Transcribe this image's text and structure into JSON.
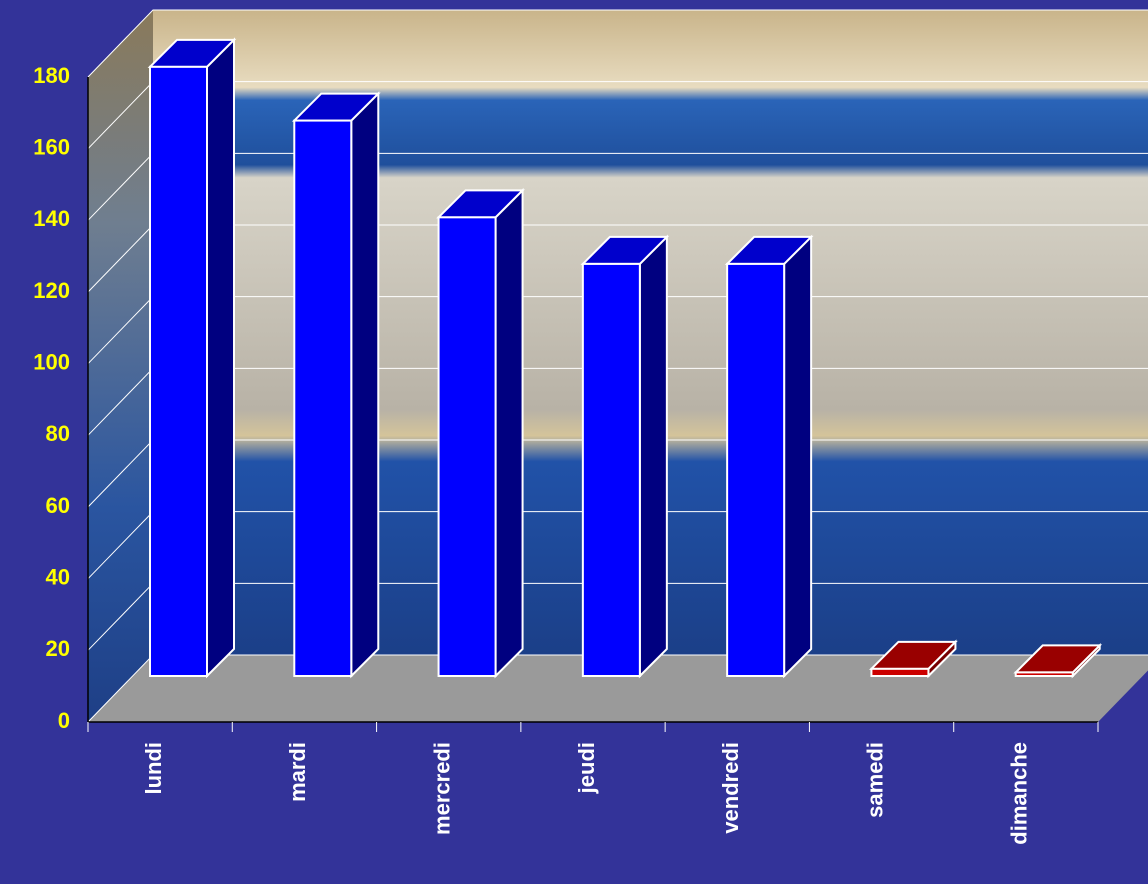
{
  "chart_data": {
    "type": "bar3d",
    "categories": [
      "lundi",
      "mardi",
      "mercredi",
      "jeudi",
      "vendredi",
      "samedi",
      "dimanche"
    ],
    "values": [
      170,
      155,
      128,
      115,
      115,
      2,
      1
    ],
    "colors": [
      "#0000ff",
      "#0000ff",
      "#0000ff",
      "#0000ff",
      "#0000ff",
      "#cc0000",
      "#cc0000"
    ],
    "ylim": [
      0,
      180
    ],
    "yticks": [
      0,
      20,
      40,
      60,
      80,
      100,
      120,
      140,
      160,
      180
    ],
    "grid": true
  }
}
